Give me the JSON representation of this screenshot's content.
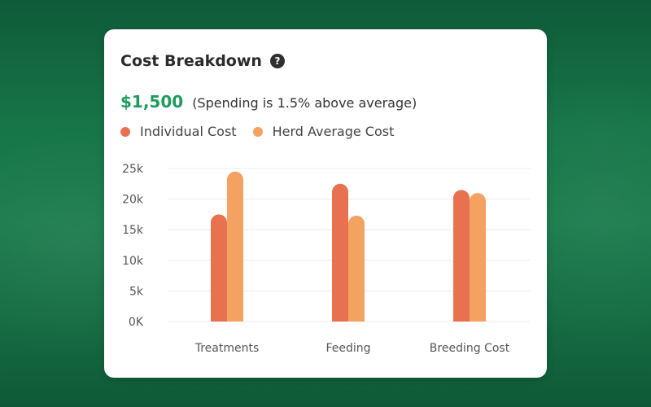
{
  "card": {
    "title": "Cost Breakdown",
    "help_symbol": "?",
    "amount": "$1,500",
    "note": "(Spending is 1.5% above average)"
  },
  "colors": {
    "individual": "#e87150",
    "herd": "#f4a261",
    "amount": "#1f9a5e"
  },
  "chart_data": {
    "type": "bar",
    "categories": [
      "Treatments",
      "Feeding",
      "Breeding Cost"
    ],
    "series": [
      {
        "name": "Individual Cost",
        "values": [
          17500,
          22500,
          21500
        ]
      },
      {
        "name": "Herd Average Cost",
        "values": [
          24500,
          17300,
          21000
        ]
      }
    ],
    "yticks": [
      "0K",
      "5k",
      "10k",
      "15k",
      "20k",
      "25k"
    ],
    "ylim": [
      0,
      25000
    ],
    "grid": true,
    "legend_position": "top-left"
  }
}
